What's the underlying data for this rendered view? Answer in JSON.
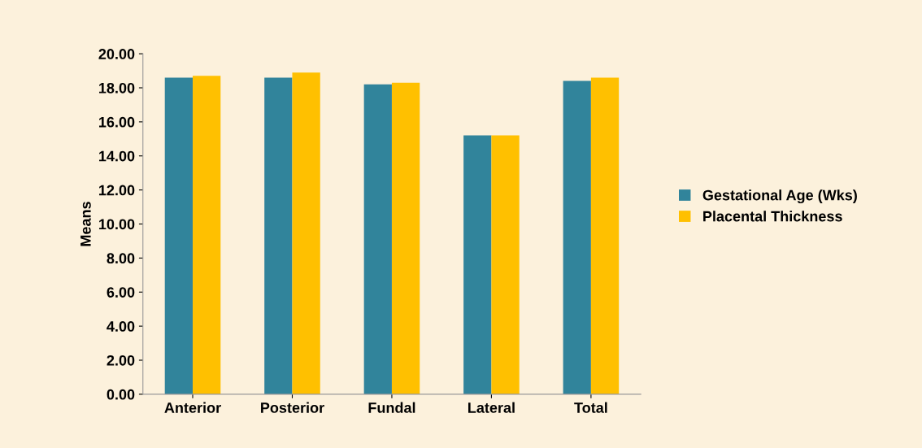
{
  "chart_data": {
    "type": "bar",
    "ylabel": "Means",
    "categories": [
      "Anterior",
      "Posterior",
      "Fundal",
      "Lateral",
      "Total"
    ],
    "series": [
      {
        "name": "Gestational Age (Wks)",
        "color": "#31849b",
        "values": [
          18.6,
          18.6,
          18.2,
          15.2,
          18.4
        ]
      },
      {
        "name": "Placental Thickness",
        "color": "#ffc000",
        "values": [
          18.7,
          18.9,
          18.3,
          15.2,
          18.6
        ]
      }
    ],
    "ylim": [
      0,
      20
    ],
    "yticks": [
      {
        "value": 0,
        "label": "0.00"
      },
      {
        "value": 2,
        "label": "2.00"
      },
      {
        "value": 4,
        "label": "4.00"
      },
      {
        "value": 6,
        "label": "6.00"
      },
      {
        "value": 8,
        "label": "8.00"
      },
      {
        "value": 10,
        "label": "10.00"
      },
      {
        "value": 12,
        "label": "12.00"
      },
      {
        "value": 14,
        "label": "14.00"
      },
      {
        "value": 16,
        "label": "16.00"
      },
      {
        "value": 18,
        "label": "18.00"
      },
      {
        "value": 20,
        "label": "20.00"
      }
    ],
    "grid": false,
    "legend": "right"
  }
}
